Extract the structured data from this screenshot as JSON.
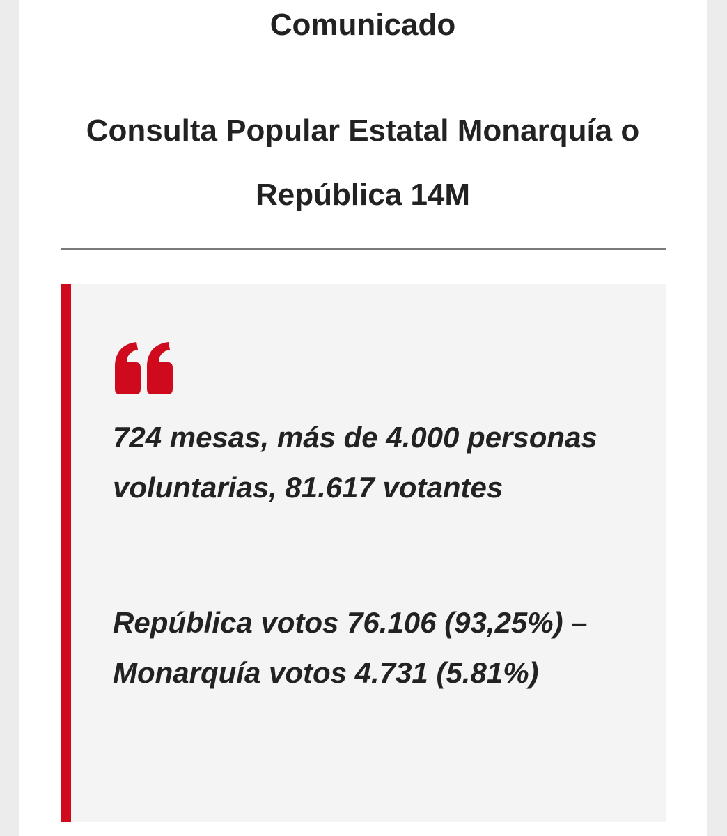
{
  "document": {
    "title": "Comunicado",
    "subtitle": "Consulta Popular Estatal Monarquía o República 14M"
  },
  "quote": {
    "icon": "quote-mark-icon",
    "accent_color": "#cf0a1c",
    "paragraphs": [
      "724 mesas, más de 4.000 personas voluntarias, 81.617 votantes",
      "República votos 76.106 (93,25%) – Monarquía votos 4.731 (5.81%)"
    ]
  }
}
